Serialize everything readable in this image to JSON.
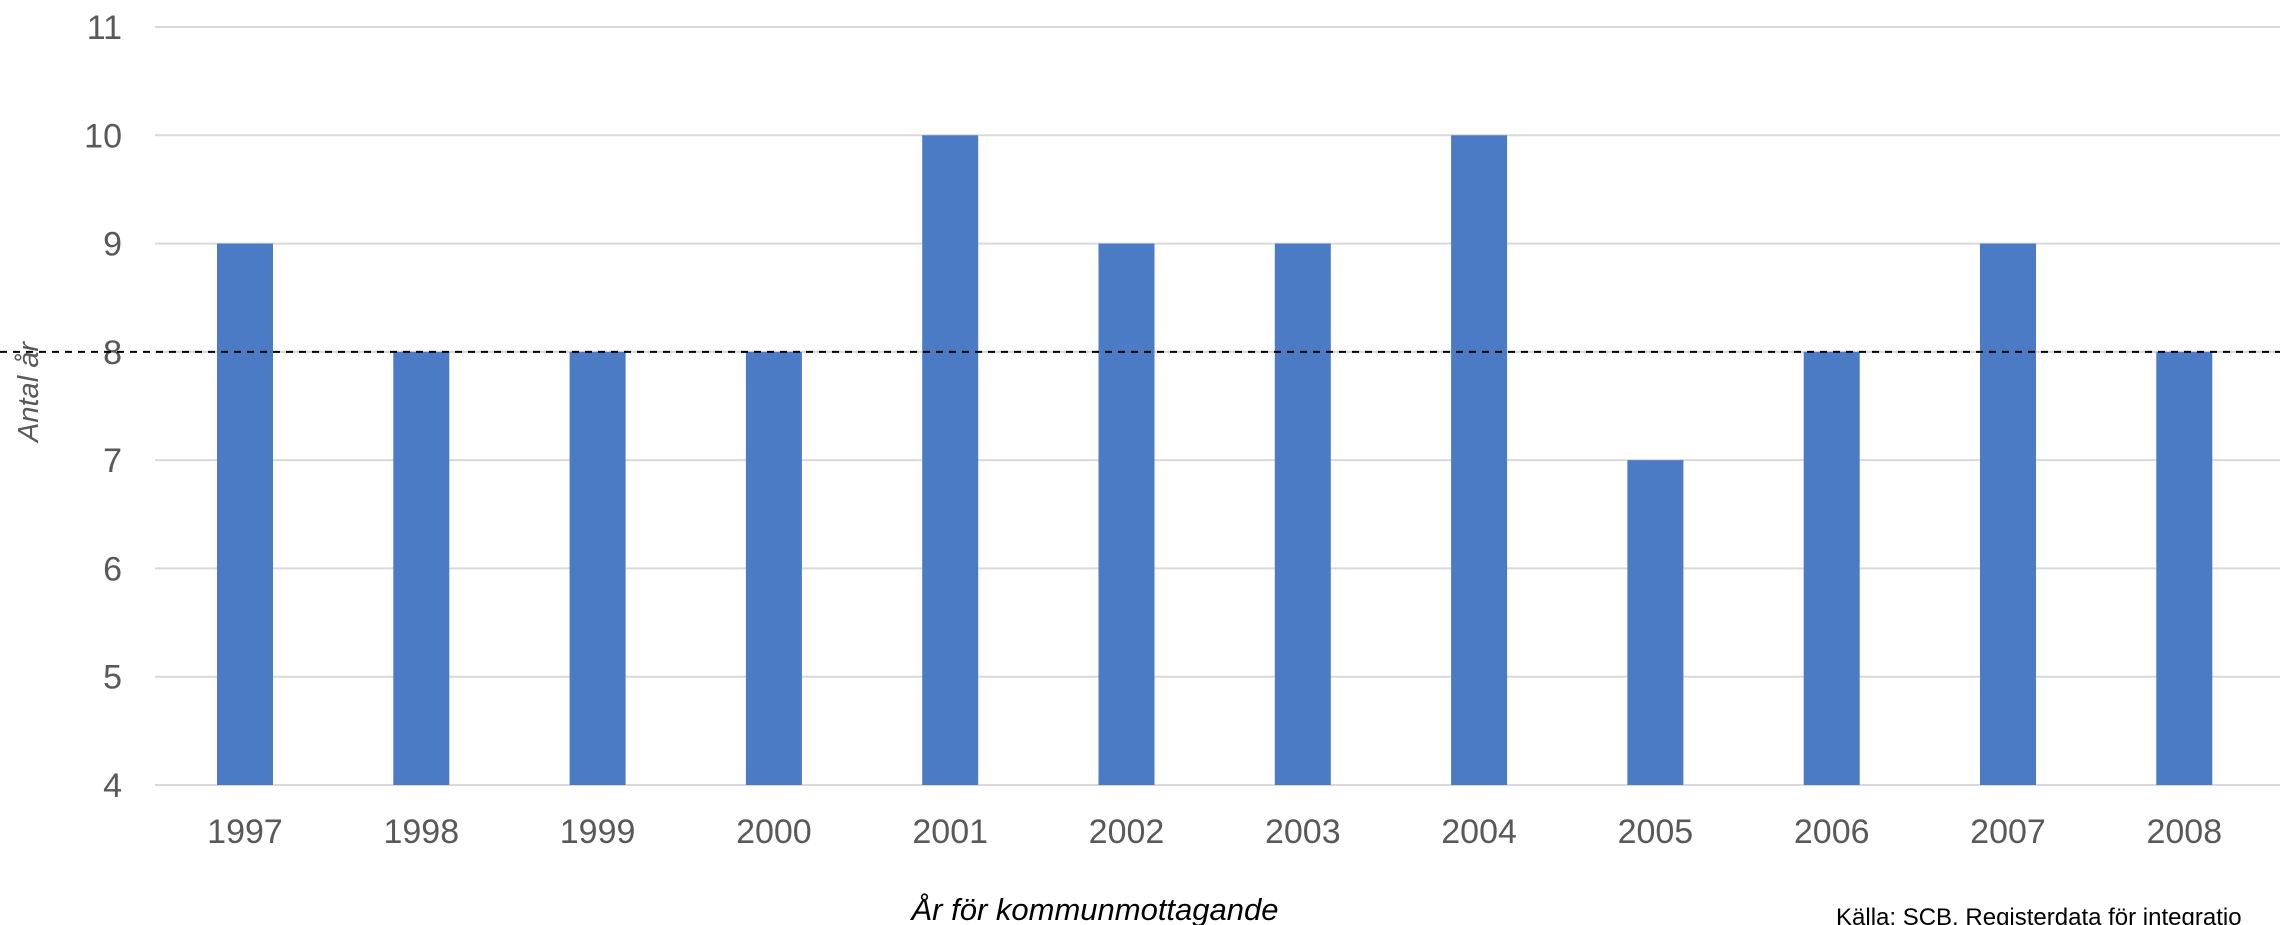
{
  "chart_data": {
    "type": "bar",
    "categories": [
      "1997",
      "1998",
      "1999",
      "2000",
      "2001",
      "2002",
      "2003",
      "2004",
      "2005",
      "2006",
      "2007",
      "2008"
    ],
    "values": [
      9,
      8,
      8,
      8,
      10,
      9,
      9,
      10,
      7,
      8,
      9,
      8
    ],
    "ylim": [
      4,
      11
    ],
    "yticks": [
      "4",
      "5",
      "6",
      "7",
      "8",
      "9",
      "10",
      "11"
    ],
    "title": "",
    "xlabel": "År för kommunmottagande",
    "ylabel": "Antal år",
    "reference_line": {
      "value": 8,
      "style": "dashed"
    },
    "grid": true,
    "bar_color": "#4A7BC4",
    "grid_color": "#D9D9D9",
    "tick_color": "#595959",
    "source_text": "Källa: SCB, Registerdata för integratio"
  }
}
